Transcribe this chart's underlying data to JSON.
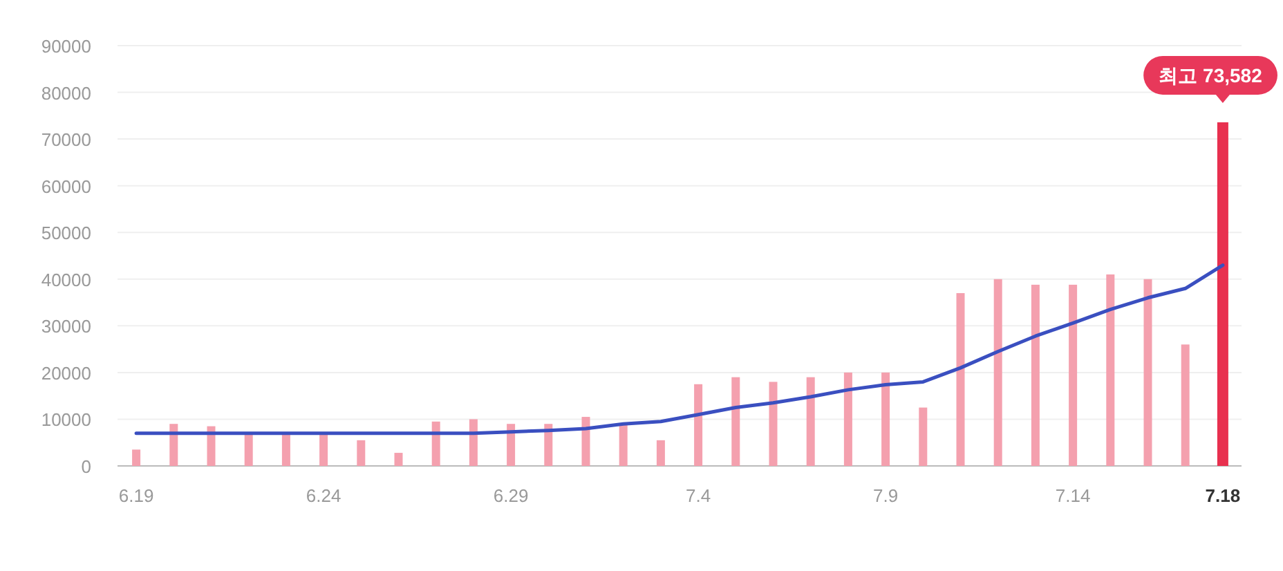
{
  "chart_data": {
    "type": "bar",
    "categories": [
      "6.19",
      null,
      null,
      null,
      null,
      "6.24",
      null,
      null,
      null,
      null,
      "6.29",
      null,
      null,
      null,
      null,
      "7.4",
      null,
      null,
      null,
      null,
      "7.9",
      null,
      null,
      null,
      null,
      "7.14",
      null,
      null,
      null,
      "7.18"
    ],
    "series": [
      {
        "colors": [
          "#f4a0ae",
          "#f4a0ae",
          "#f4a0ae",
          "#f4a0ae",
          "#f4a0ae",
          "#f4a0ae",
          "#f4a0ae",
          "#f4a0ae",
          "#f4a0ae",
          "#f4a0ae",
          "#f4a0ae",
          "#f4a0ae",
          "#f4a0ae",
          "#f4a0ae",
          "#f4a0ae",
          "#f4a0ae",
          "#f4a0ae",
          "#f4a0ae",
          "#f4a0ae",
          "#f4a0ae",
          "#f4a0ae",
          "#f4a0ae",
          "#f4a0ae",
          "#f4a0ae",
          "#f4a0ae",
          "#f4a0ae",
          "#f4a0ae",
          "#f4a0ae",
          "#f4a0ae",
          "#e8304f"
        ],
        "values": [
          3500,
          9000,
          8500,
          7000,
          7000,
          7000,
          5500,
          2800,
          9500,
          10000,
          9000,
          9000,
          10500,
          9000,
          5500,
          17500,
          19000,
          18000,
          19000,
          20000,
          20000,
          12500,
          37000,
          40000,
          38800,
          38800,
          41000,
          40000,
          26000,
          73582
        ]
      },
      {
        "type": "line",
        "color": "#3a4fc0",
        "values": [
          7000,
          7000,
          7000,
          7000,
          7000,
          7000,
          7000,
          7000,
          7000,
          7000,
          7300,
          7600,
          8000,
          9000,
          9500,
          11000,
          12500,
          13500,
          14800,
          16300,
          17400,
          18000,
          21000,
          24500,
          27800,
          30600,
          33500,
          36000,
          38000,
          43000
        ]
      }
    ],
    "ylim": [
      0,
      90000
    ],
    "yticks": [
      0,
      10000,
      20000,
      30000,
      40000,
      50000,
      60000,
      70000,
      80000,
      90000
    ],
    "grid": "y",
    "annotations": [
      {
        "text": "최고 73,582",
        "x": "7.18",
        "y": 73582
      }
    ]
  }
}
